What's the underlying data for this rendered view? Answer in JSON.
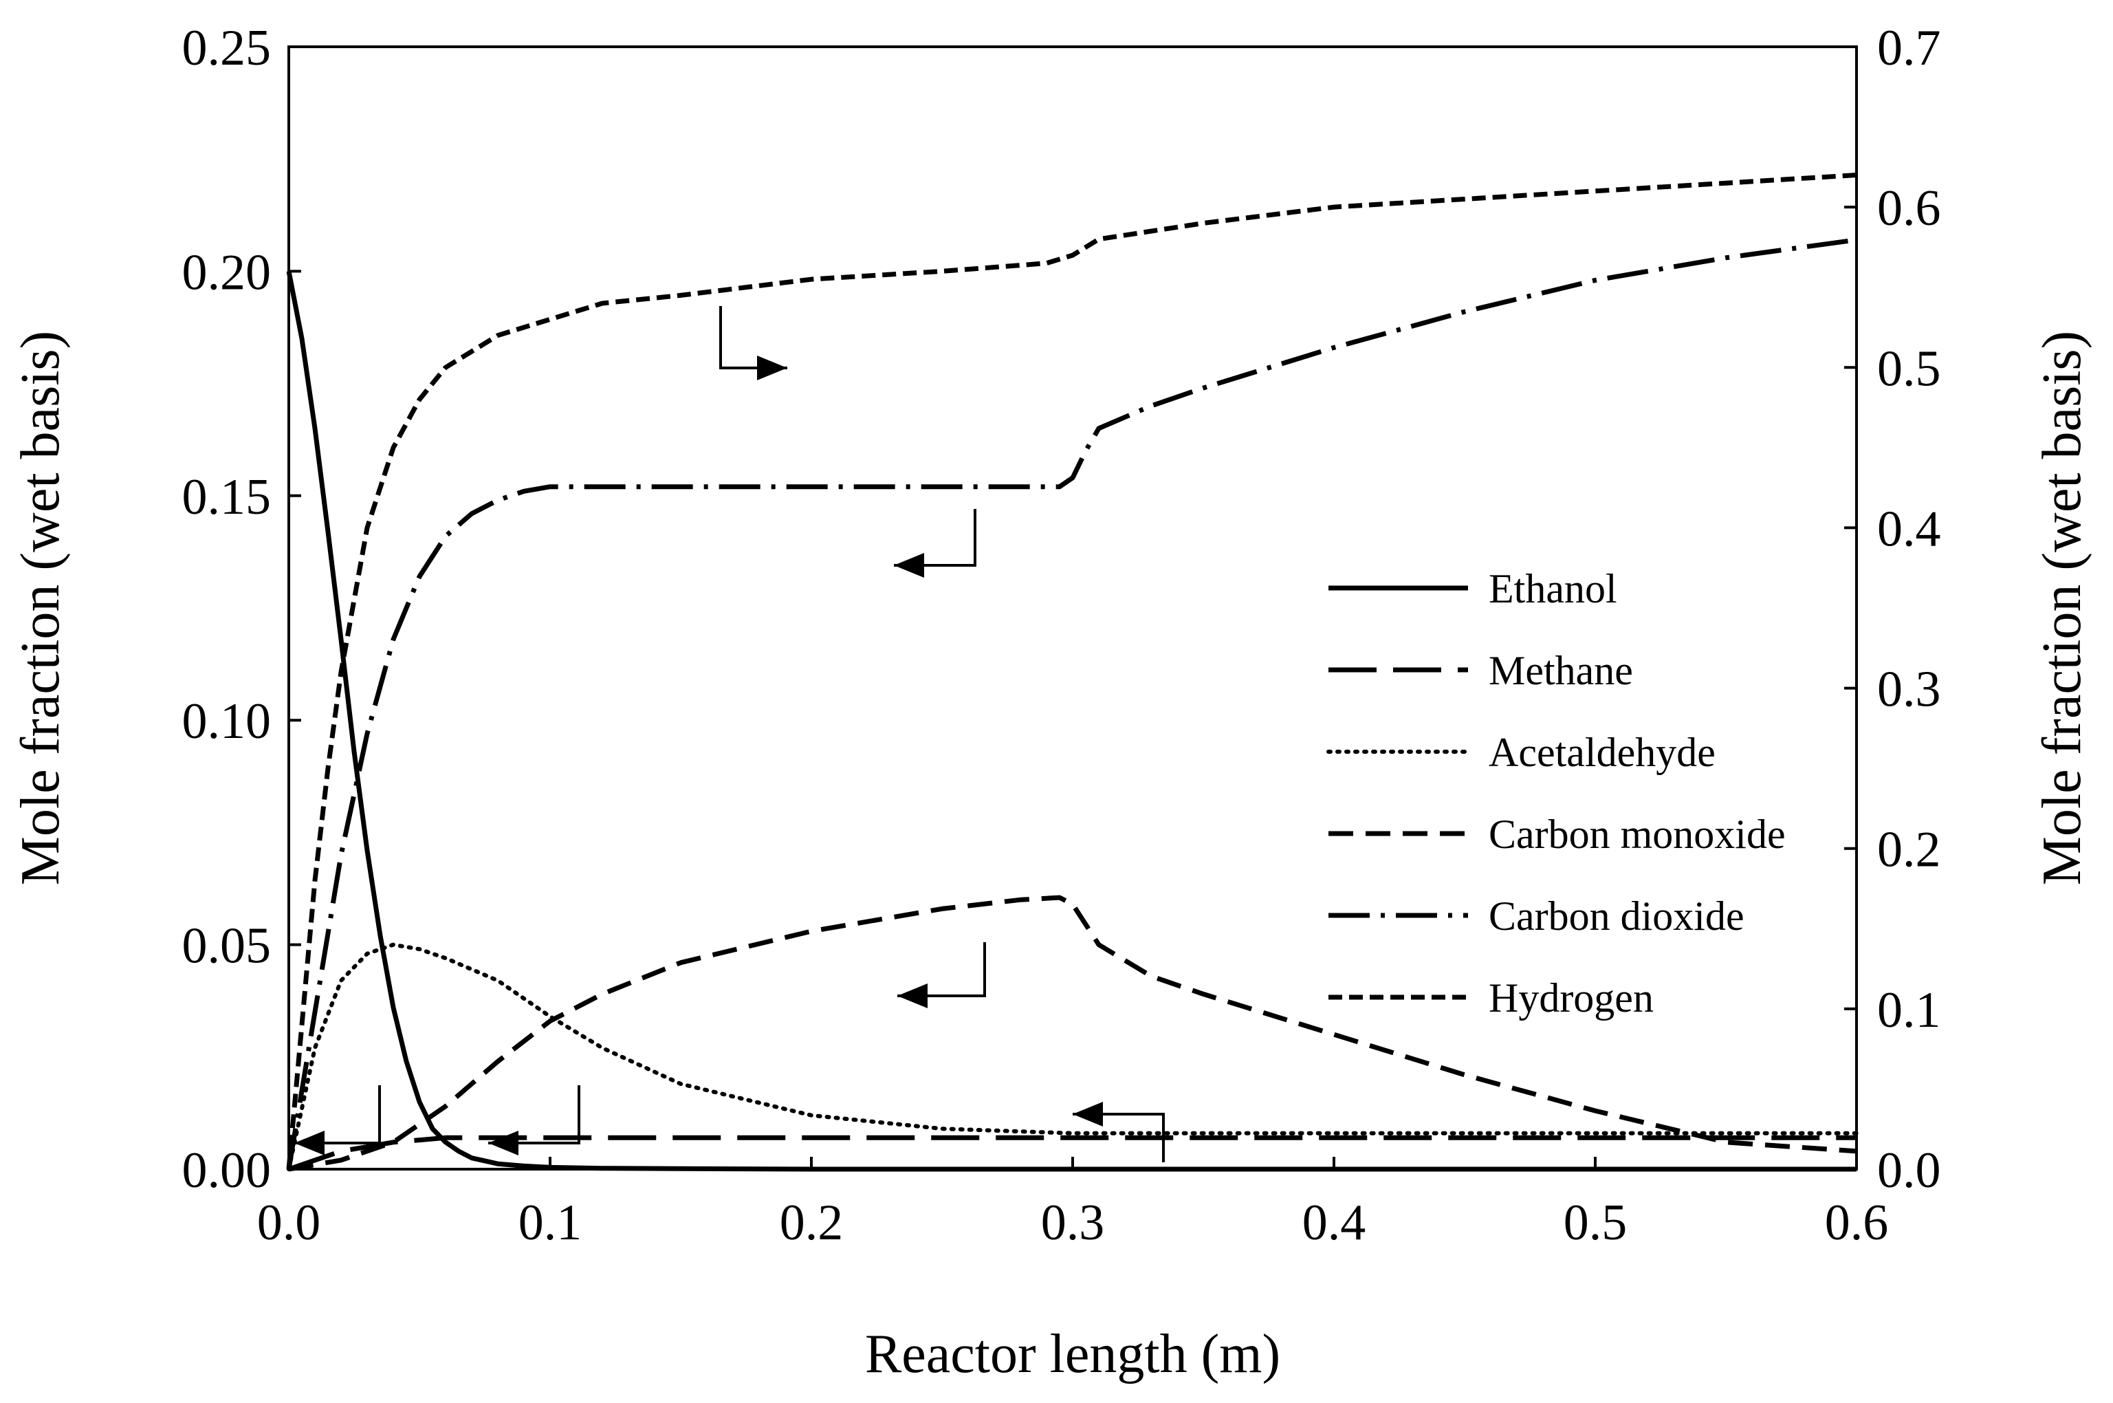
{
  "chart_data": {
    "type": "line",
    "title": "",
    "xlabel": "Reactor length (m)",
    "ylabel_left": "Mole fraction (wet basis)",
    "ylabel_right": "Mole fraction (wet basis)",
    "xlim": [
      0,
      0.6
    ],
    "ylim_left": [
      0,
      0.25
    ],
    "ylim_right": [
      0,
      0.7
    ],
    "x_ticks": [
      "0.0",
      "0.1",
      "0.2",
      "0.3",
      "0.4",
      "0.5",
      "0.6"
    ],
    "y_left_ticks": [
      "0.00",
      "0.05",
      "0.10",
      "0.15",
      "0.20",
      "0.25"
    ],
    "y_right_ticks": [
      "0.0",
      "0.1",
      "0.2",
      "0.3",
      "0.4",
      "0.5",
      "0.6",
      "0.7"
    ],
    "grid": false,
    "legend_position": "center-right",
    "series": [
      {
        "name": "Ethanol",
        "axis": "left",
        "dash": "solid",
        "x": [
          0,
          0.005,
          0.01,
          0.015,
          0.02,
          0.025,
          0.03,
          0.035,
          0.04,
          0.045,
          0.05,
          0.055,
          0.06,
          0.065,
          0.07,
          0.08,
          0.09,
          0.1,
          0.12,
          0.15,
          0.2,
          0.3,
          0.4,
          0.5,
          0.6
        ],
        "y": [
          0.2,
          0.185,
          0.165,
          0.142,
          0.118,
          0.093,
          0.071,
          0.052,
          0.036,
          0.024,
          0.015,
          0.009,
          0.006,
          0.004,
          0.0025,
          0.0012,
          0.0007,
          0.0004,
          0.0002,
          0.0001,
          0,
          0,
          0,
          0,
          0
        ]
      },
      {
        "name": "Methane",
        "axis": "left",
        "dash": "long-dash",
        "x": [
          0,
          0.01,
          0.02,
          0.03,
          0.04,
          0.05,
          0.06,
          0.08,
          0.1,
          0.2,
          0.3,
          0.4,
          0.5,
          0.6
        ],
        "y": [
          0,
          0.002,
          0.004,
          0.005,
          0.006,
          0.0065,
          0.007,
          0.007,
          0.007,
          0.007,
          0.007,
          0.007,
          0.007,
          0.007
        ]
      },
      {
        "name": "Acetaldehyde",
        "axis": "left",
        "dash": "dotted",
        "x": [
          0,
          0.01,
          0.02,
          0.03,
          0.04,
          0.05,
          0.06,
          0.08,
          0.1,
          0.12,
          0.15,
          0.2,
          0.25,
          0.3,
          0.35,
          0.4,
          0.5,
          0.6
        ],
        "y": [
          0,
          0.027,
          0.042,
          0.048,
          0.05,
          0.049,
          0.047,
          0.042,
          0.034,
          0.027,
          0.019,
          0.012,
          0.009,
          0.008,
          0.008,
          0.008,
          0.008,
          0.008
        ]
      },
      {
        "name": "Carbon monoxide",
        "axis": "left",
        "dash": "dash",
        "x": [
          0,
          0.02,
          0.04,
          0.06,
          0.08,
          0.1,
          0.12,
          0.15,
          0.2,
          0.25,
          0.28,
          0.295,
          0.3,
          0.31,
          0.33,
          0.35,
          0.4,
          0.45,
          0.5,
          0.55,
          0.6
        ],
        "y": [
          0,
          0.002,
          0.006,
          0.014,
          0.024,
          0.033,
          0.039,
          0.046,
          0.053,
          0.058,
          0.06,
          0.0605,
          0.059,
          0.05,
          0.043,
          0.039,
          0.03,
          0.021,
          0.013,
          0.006,
          0.004
        ]
      },
      {
        "name": "Carbon dioxide",
        "axis": "left",
        "dash": "dash-dot",
        "x": [
          0,
          0.01,
          0.02,
          0.03,
          0.04,
          0.05,
          0.06,
          0.07,
          0.08,
          0.09,
          0.1,
          0.15,
          0.2,
          0.25,
          0.295,
          0.3,
          0.305,
          0.31,
          0.33,
          0.35,
          0.4,
          0.45,
          0.5,
          0.55,
          0.6
        ],
        "y": [
          0,
          0.035,
          0.07,
          0.097,
          0.118,
          0.132,
          0.141,
          0.146,
          0.149,
          0.151,
          0.152,
          0.152,
          0.152,
          0.152,
          0.152,
          0.154,
          0.16,
          0.165,
          0.17,
          0.174,
          0.183,
          0.191,
          0.198,
          0.203,
          0.207
        ]
      },
      {
        "name": "Hydrogen",
        "axis": "right",
        "dash": "short-dash",
        "x": [
          0,
          0.005,
          0.01,
          0.015,
          0.02,
          0.03,
          0.04,
          0.05,
          0.06,
          0.07,
          0.08,
          0.1,
          0.12,
          0.15,
          0.2,
          0.25,
          0.29,
          0.3,
          0.31,
          0.35,
          0.4,
          0.45,
          0.5,
          0.55,
          0.6
        ],
        "y": [
          0,
          0.09,
          0.18,
          0.25,
          0.31,
          0.4,
          0.45,
          0.48,
          0.5,
          0.51,
          0.52,
          0.53,
          0.54,
          0.545,
          0.555,
          0.56,
          0.565,
          0.57,
          0.58,
          0.59,
          0.6,
          0.605,
          0.61,
          0.615,
          0.62
        ]
      }
    ],
    "annotations": [
      {
        "type": "axis-arrow",
        "target": "right",
        "series": "Hydrogen"
      },
      {
        "type": "axis-arrow",
        "target": "left",
        "series": "Carbon dioxide"
      },
      {
        "type": "axis-arrow",
        "target": "left",
        "series": "Carbon monoxide"
      },
      {
        "type": "axis-arrow",
        "target": "left",
        "series": "Ethanol"
      },
      {
        "type": "axis-arrow",
        "target": "left",
        "series": "Methane"
      },
      {
        "type": "axis-arrow",
        "target": "left",
        "series": "Acetaldehyde"
      }
    ]
  }
}
